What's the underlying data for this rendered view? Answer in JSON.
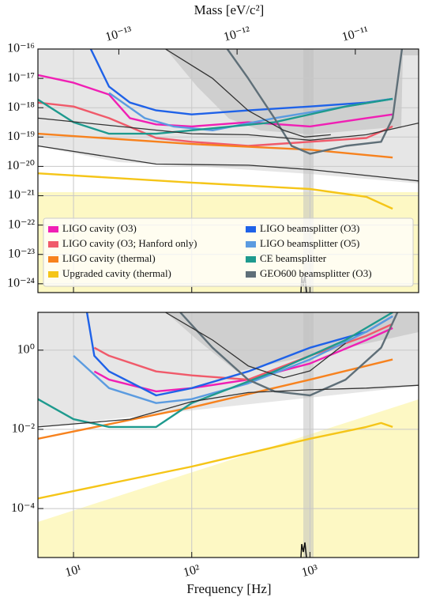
{
  "chart_data": [
    {
      "type": "line",
      "x2label": "Mass [eV/c²]",
      "x2lim": [
        2.07e-14,
        3.43e-11
      ],
      "x2ticks": [
        {
          "value": 1e-13,
          "label": "10⁻¹³"
        },
        {
          "value": 1e-12,
          "label": "10⁻¹²"
        },
        {
          "value": 1e-11,
          "label": "10⁻¹¹"
        }
      ],
      "xlim": [
        5,
        8300
      ],
      "ylim": [
        5e-25,
        1e-16
      ],
      "yticks": [
        {
          "value": 1e-16,
          "label": "10⁻¹⁶"
        },
        {
          "value": 1e-17,
          "label": "10⁻¹⁷"
        },
        {
          "value": 1e-18,
          "label": "10⁻¹⁸"
        },
        {
          "value": 1e-19,
          "label": "10⁻¹⁹"
        },
        {
          "value": 1e-20,
          "label": "10⁻²⁰"
        },
        {
          "value": 1e-21,
          "label": "10⁻²¹"
        },
        {
          "value": 1e-22,
          "label": "10⁻²²"
        },
        {
          "value": 1e-23,
          "label": "10⁻²³"
        },
        {
          "value": 1e-24,
          "label": "10⁻²⁴"
        }
      ],
      "log_x": true,
      "log_y": true,
      "grid": true,
      "legend": "lower left",
      "series": [
        {
          "name": "LIGO cavity (O3)",
          "color": "#f01fb4",
          "x": [
            5,
            10,
            20,
            30,
            50,
            100,
            300,
            1000,
            3000,
            5000
          ],
          "values": [
            1.3e-17,
            7.1e-18,
            2.8e-18,
            4.4e-19,
            2.7e-19,
            2.3e-19,
            3.2e-19,
            2.3e-19,
            4.4e-19,
            5.9e-19
          ]
        },
        {
          "name": "LIGO cavity (O3; Hanford only)",
          "color": "#f05a6a",
          "x": [
            5,
            10,
            20,
            50,
            100,
            300,
            1000,
            3000,
            5000
          ],
          "values": [
            1.5e-18,
            1.1e-18,
            4.4e-19,
            9.3e-20,
            6.9e-20,
            5e-20,
            6.9e-20,
            9.3e-20,
            2.3e-19
          ]
        },
        {
          "name": "LIGO cavity (thermal)",
          "color": "#f7821e",
          "x": [
            5,
            100,
            1000,
            5000
          ],
          "values": [
            1.3e-19,
            5.8e-20,
            3.7e-20,
            2e-20
          ]
        },
        {
          "name": "Upgraded cavity (thermal)",
          "color": "#f5c518",
          "x": [
            5,
            100,
            1000,
            3000,
            5000
          ],
          "values": [
            5.8e-21,
            2.8e-21,
            1.7e-21,
            9.2e-22,
            3.6e-22
          ]
        },
        {
          "name": "LIGO beamsplitter (O3)",
          "color": "#1f62e8",
          "x": [
            14,
            20,
            30,
            50,
            100,
            300,
            1000,
            3000,
            5000
          ],
          "values": [
            1e-16,
            5.2e-18,
            1.5e-18,
            8.1e-19,
            5.9e-19,
            8.1e-19,
            1.1e-18,
            1.5e-18,
            2e-18
          ]
        },
        {
          "name": "LIGO beamsplitter (O5)",
          "color": "#5b9be0",
          "x": [
            20,
            40,
            70,
            150,
            500,
            2000,
            5000
          ],
          "values": [
            3.2e-18,
            4.4e-19,
            2.3e-19,
            1.7e-19,
            4.4e-19,
            1.1e-18,
            2e-18
          ]
        },
        {
          "name": "CE beamsplitter",
          "color": "#1e9a8e",
          "x": [
            5,
            10,
            20,
            50,
            100,
            500,
            2000,
            5000
          ],
          "values": [
            1.9e-18,
            3.2e-19,
            1.3e-19,
            1.3e-19,
            1.7e-19,
            3.2e-19,
            1.1e-18,
            2e-18
          ]
        },
        {
          "name": "GEO600 beamsplitter (O3)",
          "color": "#5f6f78",
          "x": [
            200,
            300,
            500,
            700,
            1000,
            2000,
            4000,
            5000,
            6000
          ],
          "values": [
            1e-16,
            1e-17,
            4.4e-19,
            5e-20,
            2.7e-20,
            5e-20,
            6.9e-20,
            4.4e-19,
            1e-16
          ]
        },
        {
          "color": "#333333",
          "x": [
            5,
            100,
            300,
            1000,
            3000,
            8300
          ],
          "values": [
            4.4e-19,
            1.3e-19,
            1.2e-19,
            7.8e-20,
            1.2e-19,
            3e-19
          ]
        },
        {
          "color": "#333333",
          "x": [
            5,
            50,
            300,
            1000,
            8300
          ],
          "values": [
            5e-20,
            1.2e-20,
            1.1e-20,
            7.8e-21,
            3.2e-21
          ]
        },
        {
          "color": "#333333",
          "x": [
            60,
            150,
            300,
            600,
            900,
            1500
          ],
          "values": [
            1e-16,
            1e-17,
            8e-19,
            1.7e-19,
            1e-19,
            1.2e-19
          ]
        }
      ]
    },
    {
      "type": "line",
      "xlabel": "Frequency [Hz]",
      "xlim": [
        5,
        8300
      ],
      "ylim": [
        5.8e-06,
        9
      ],
      "xticks": [
        {
          "value": 10,
          "label": "10¹"
        },
        {
          "value": 100,
          "label": "10²"
        },
        {
          "value": 1000,
          "label": "10³"
        }
      ],
      "yticks": [
        {
          "value": 1,
          "label": "10⁰"
        },
        {
          "value": 0.01,
          "label": "10⁻²"
        },
        {
          "value": 0.0001,
          "label": "10⁻⁴"
        }
      ],
      "log_x": true,
      "log_y": true,
      "grid": true,
      "series": [
        {
          "color": "#f01fb4",
          "x": [
            15,
            20,
            50,
            100,
            300,
            1000,
            3000,
            5000
          ],
          "values": [
            0.29,
            0.18,
            0.091,
            0.11,
            0.18,
            0.46,
            1.8,
            3.6
          ]
        },
        {
          "color": "#f05a6a",
          "x": [
            15,
            20,
            50,
            100,
            300,
            1000,
            3000,
            5000
          ],
          "values": [
            1.15,
            0.72,
            0.29,
            0.23,
            0.18,
            0.72,
            2.3,
            4.6
          ]
        },
        {
          "color": "#f7821e",
          "x": [
            5,
            100,
            1000,
            5000
          ],
          "values": [
            0.0058,
            0.036,
            0.18,
            0.58
          ]
        },
        {
          "color": "#f5c518",
          "x": [
            5,
            100,
            1000,
            3000,
            4000,
            5000
          ],
          "values": [
            0.00018,
            0.00115,
            0.0058,
            0.0115,
            0.0145,
            0.0115
          ]
        },
        {
          "color": "#1f62e8",
          "x": [
            13,
            15,
            20,
            50,
            100,
            300,
            1000,
            3000,
            5000
          ],
          "values": [
            9,
            0.72,
            0.29,
            0.072,
            0.11,
            0.29,
            1.15,
            2.9,
            7.2
          ]
        },
        {
          "color": "#5b9be0",
          "x": [
            10,
            20,
            50,
            100,
            300,
            1000,
            3000,
            5000
          ],
          "values": [
            0.72,
            0.11,
            0.046,
            0.058,
            0.145,
            0.58,
            2.9,
            7.2
          ]
        },
        {
          "color": "#1e9a8e",
          "x": [
            5,
            10,
            20,
            50,
            100,
            500,
            2000,
            5000
          ],
          "values": [
            0.058,
            0.018,
            0.0115,
            0.0115,
            0.046,
            0.29,
            1.8,
            9
          ]
        },
        {
          "color": "#5f6f78",
          "x": [
            80,
            150,
            300,
            500,
            1000,
            2000,
            4000,
            5500
          ],
          "values": [
            9,
            1.15,
            0.18,
            0.091,
            0.072,
            0.18,
            1.15,
            9
          ]
        },
        {
          "color": "#333333",
          "x": [
            5,
            30,
            100,
            300,
            1000,
            3000,
            8300
          ],
          "values": [
            0.0115,
            0.018,
            0.05,
            0.085,
            0.1,
            0.11,
            0.13
          ]
        },
        {
          "color": "#333333",
          "x": [
            60,
            150,
            300,
            600,
            1000,
            2000
          ],
          "values": [
            9,
            1.8,
            0.4,
            0.2,
            0.3,
            1.5
          ]
        }
      ]
    }
  ]
}
